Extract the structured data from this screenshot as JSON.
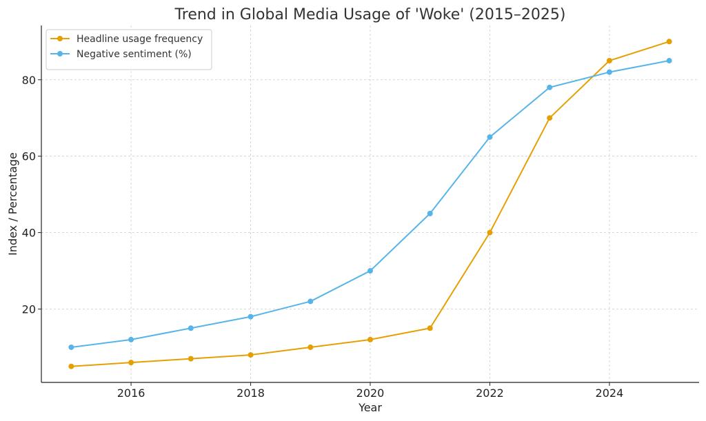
{
  "chart_data": {
    "type": "line",
    "title": "Trend in Global Media Usage of 'Woke' (2015–2025)",
    "xlabel": "Year",
    "ylabel": "Index / Percentage",
    "x": [
      2015,
      2016,
      2017,
      2018,
      2019,
      2020,
      2021,
      2022,
      2023,
      2024,
      2025
    ],
    "xlim": [
      2014.5,
      2025.5
    ],
    "ylim": [
      0.8,
      94.2
    ],
    "xticks": [
      2016,
      2018,
      2020,
      2022,
      2024
    ],
    "yticks": [
      20,
      40,
      60,
      80
    ],
    "grid": true,
    "legend_position": "top-left",
    "series": [
      {
        "name": "Headline usage frequency",
        "color": "#E69F00",
        "values": [
          5,
          6,
          7,
          8,
          10,
          12,
          15,
          40,
          70,
          85,
          90
        ]
      },
      {
        "name": "Negative sentiment (%)",
        "color": "#56B4E9",
        "values": [
          10,
          12,
          15,
          18,
          22,
          30,
          45,
          65,
          78,
          82,
          85
        ]
      }
    ]
  }
}
